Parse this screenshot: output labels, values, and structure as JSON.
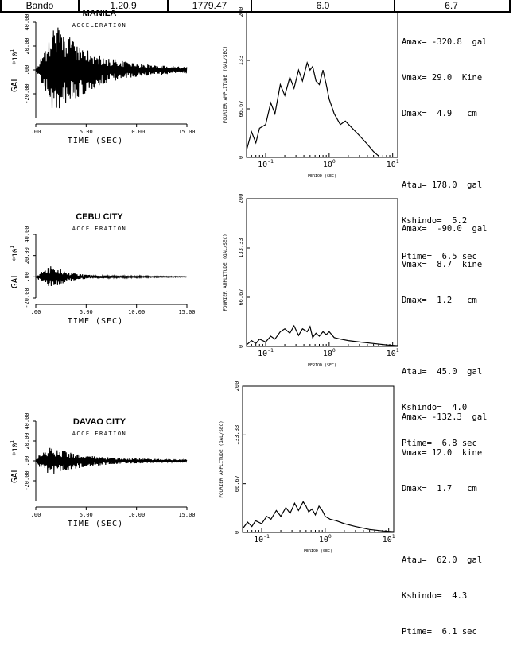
{
  "header": [
    "Bando",
    "1.20.9",
    "1779.47",
    "6.0",
    "6.7"
  ],
  "chart_data": [
    {
      "type": "line",
      "title": "MANILA",
      "subtitle": "ACCELERATION",
      "xlabel": "TIME (SEC)",
      "ylabel": "GAL",
      "yexp": "*10^1",
      "xlim": [
        0,
        15
      ],
      "ylim": [
        -40,
        40
      ],
      "xticks": [
        ".00",
        "5.00",
        "10.00",
        "15.00"
      ],
      "yticks": [
        "40.00",
        "20.00",
        ".00",
        "-20.00"
      ],
      "envelope": [
        [
          0.4,
          8
        ],
        [
          1.0,
          20
        ],
        [
          1.6,
          34
        ],
        [
          2.2,
          36
        ],
        [
          3.0,
          30
        ],
        [
          4.0,
          24
        ],
        [
          5.0,
          20
        ],
        [
          6.0,
          15
        ],
        [
          7.0,
          11
        ],
        [
          8.0,
          9
        ],
        [
          9.0,
          7
        ],
        [
          10.0,
          6
        ],
        [
          11.0,
          5
        ],
        [
          12.0,
          4
        ],
        [
          13.0,
          4
        ],
        [
          14.0,
          3
        ],
        [
          15.0,
          3
        ]
      ]
    },
    {
      "type": "line",
      "title": "",
      "subtitle": "",
      "xlabel": "PERIOD (SEC)",
      "ylabel": "FOURIER AMPLITUDE (GAL/SEC)",
      "xscale": "log",
      "xlim": [
        0.05,
        12
      ],
      "ylim": [
        0,
        200
      ],
      "xticks": [
        "10^-1",
        "10^0",
        "10^1"
      ],
      "yticks": [
        "200",
        "133",
        "66.67",
        "0"
      ],
      "x": [
        0.05,
        0.06,
        0.07,
        0.08,
        0.1,
        0.12,
        0.14,
        0.17,
        0.2,
        0.24,
        0.28,
        0.33,
        0.38,
        0.45,
        0.5,
        0.55,
        0.62,
        0.7,
        0.8,
        0.9,
        1.0,
        1.2,
        1.5,
        1.8,
        2.2,
        3,
        4,
        5,
        6
      ],
      "y": [
        10,
        35,
        20,
        40,
        45,
        75,
        60,
        100,
        85,
        110,
        95,
        120,
        105,
        130,
        120,
        125,
        105,
        100,
        120,
        100,
        80,
        60,
        45,
        50,
        42,
        30,
        18,
        8,
        2
      ]
    },
    {
      "type": "line",
      "title": "CEBU CITY",
      "subtitle": "ACCELERATION",
      "xlabel": "TIME (SEC)",
      "ylabel": "GAL",
      "yexp": "*10^1",
      "xlim": [
        0,
        15
      ],
      "ylim": [
        -20,
        40
      ],
      "xticks": [
        ".00",
        "5.00",
        "10.00",
        "15.00"
      ],
      "yticks": [
        "40.00",
        "20.00",
        ".00",
        "-20.00"
      ],
      "envelope": [
        [
          0.3,
          3
        ],
        [
          1.0,
          8
        ],
        [
          1.5,
          10
        ],
        [
          2.0,
          9
        ],
        [
          3.0,
          5
        ],
        [
          4.0,
          3
        ],
        [
          5.0,
          2
        ],
        [
          6.0,
          1.5
        ],
        [
          8.0,
          1
        ],
        [
          10.0,
          0.8
        ],
        [
          12.0,
          0.5
        ],
        [
          15.0,
          0.4
        ]
      ]
    },
    {
      "type": "line",
      "title": "",
      "subtitle": "",
      "xlabel": "PERIOD (SEC)",
      "ylabel": "FOURIER AMPLITUDE (GAL/SEC)",
      "xscale": "log",
      "xlim": [
        0.05,
        12
      ],
      "ylim": [
        0,
        200
      ],
      "xticks": [
        "10^-1",
        "10^0",
        "10^1"
      ],
      "yticks": [
        "200",
        "133.33",
        "66.67",
        "0"
      ],
      "x": [
        0.05,
        0.06,
        0.07,
        0.08,
        0.1,
        0.12,
        0.14,
        0.17,
        0.2,
        0.24,
        0.28,
        0.33,
        0.38,
        0.45,
        0.5,
        0.55,
        0.62,
        0.7,
        0.8,
        0.9,
        1.0,
        1.2,
        1.5,
        2,
        3,
        5,
        8,
        12
      ],
      "y": [
        2,
        8,
        4,
        10,
        6,
        14,
        10,
        20,
        24,
        18,
        28,
        15,
        24,
        20,
        27,
        12,
        18,
        14,
        20,
        16,
        20,
        12,
        10,
        8,
        6,
        4,
        2,
        1
      ]
    },
    {
      "type": "line",
      "title": "DAVAO CITY",
      "subtitle": "ACCELERATION",
      "xlabel": "TIME (SEC)",
      "ylabel": "GAL",
      "yexp": "*10^1",
      "xlim": [
        0,
        15
      ],
      "ylim": [
        -40,
        40
      ],
      "xticks": [
        ".00",
        "5.00",
        "10.00",
        "15.00"
      ],
      "yticks": [
        "40.00",
        "20.00",
        ".00",
        "-20.00"
      ],
      "envelope": [
        [
          0.3,
          6
        ],
        [
          1.0,
          12
        ],
        [
          1.5,
          14
        ],
        [
          2.2,
          12
        ],
        [
          3.0,
          10
        ],
        [
          4.0,
          8
        ],
        [
          5.0,
          6
        ],
        [
          6.0,
          5
        ],
        [
          7.0,
          4
        ],
        [
          8.0,
          3
        ],
        [
          10.0,
          2.5
        ],
        [
          12.0,
          2
        ],
        [
          15.0,
          1.5
        ]
      ]
    },
    {
      "type": "line",
      "title": "",
      "subtitle": "",
      "xlabel": "PERIOD (SEC)",
      "ylabel": "FOURIER AMPLITUDE (GAL/SEC)",
      "xscale": "log",
      "xlim": [
        0.05,
        12
      ],
      "ylim": [
        0,
        200
      ],
      "xticks": [
        "10^-1",
        "10^0",
        "10^1"
      ],
      "yticks": [
        "200",
        "133.33",
        "66.67",
        "0"
      ],
      "x": [
        0.05,
        0.06,
        0.07,
        0.08,
        0.1,
        0.12,
        0.14,
        0.17,
        0.2,
        0.24,
        0.28,
        0.33,
        0.38,
        0.45,
        0.5,
        0.55,
        0.62,
        0.7,
        0.8,
        0.9,
        1.0,
        1.2,
        1.5,
        2,
        3,
        5,
        8,
        12
      ],
      "y": [
        5,
        14,
        8,
        16,
        12,
        22,
        18,
        30,
        22,
        34,
        26,
        40,
        30,
        42,
        36,
        28,
        32,
        24,
        36,
        30,
        22,
        18,
        16,
        12,
        8,
        4,
        2,
        1
      ]
    }
  ],
  "stations": [
    {
      "stats": [
        "Amax= -320.8  gal",
        "Vmax= 29.0  Kine",
        "Dmax=  4.9   cm",
        "",
        "Atau= 178.0  gal",
        "Kshindo=  5.2",
        "Ptime=  6.5 sec"
      ]
    },
    {
      "stats": [
        "Amax=  -90.0  gal",
        "Vmax=  8.7  kine",
        "Dmax=  1.2   cm",
        "",
        "Atau=  45.0  gal",
        "Kshindo=  4.0",
        "Ptime=  6.8 sec"
      ]
    },
    {
      "stats": [
        "Amax= -132.3  gal",
        "Vmax= 12.0  kine",
        "Dmax=  1.7   cm",
        "",
        "Atau=  62.0  gal",
        "Kshindo=  4.3",
        "Ptime=  6.1 sec"
      ]
    }
  ]
}
